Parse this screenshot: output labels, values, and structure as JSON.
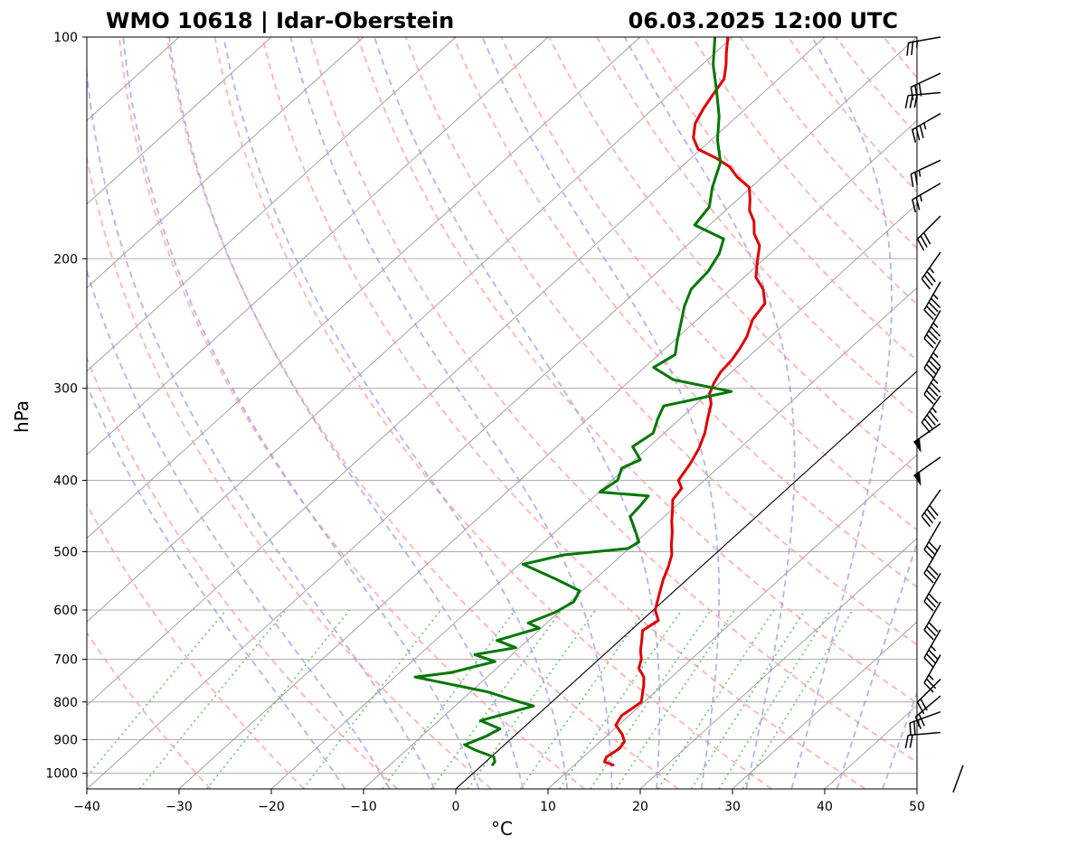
{
  "chart_data": {
    "type": "line",
    "subtype": "skew-t log-p sounding",
    "title_left": "WMO 10618 | Idar-Oberstein",
    "title_right": "06.03.2025 12:00 UTC",
    "xlabel": "°C",
    "ylabel": "hPa",
    "xlim": [
      -40,
      50
    ],
    "ylim": [
      1050,
      100
    ],
    "x_ticks": [
      -40,
      -30,
      -20,
      -10,
      0,
      10,
      20,
      30,
      40,
      50
    ],
    "x_tick_labels": [
      "−40",
      "−30",
      "−20",
      "−10",
      "0",
      "10",
      "20",
      "30",
      "40",
      "50"
    ],
    "y_ticks": [
      1000,
      900,
      800,
      700,
      600,
      500,
      400,
      300,
      200,
      100
    ],
    "y_tick_labels": [
      "1000",
      "900",
      "800",
      "700",
      "600",
      "500",
      "400",
      "300",
      "200",
      "100"
    ],
    "grid": true,
    "colors": {
      "temperature": "#dd0000",
      "dewpoint": "#007700",
      "dry_adiabats": "#ff9999",
      "moist_adiabats": "#9999ee",
      "mixing_ratio": "#66bb66",
      "isotherms": "#999999",
      "zero_isotherm": "#000000",
      "barbs": "#000000"
    },
    "series": [
      {
        "name": "Temperature",
        "points": [
          [
            14.3,
            975
          ],
          [
            12.9,
            965
          ],
          [
            12.5,
            950
          ],
          [
            12.9,
            925
          ],
          [
            12.6,
            905
          ],
          [
            11.5,
            885
          ],
          [
            9.7,
            860
          ],
          [
            9.2,
            835
          ],
          [
            9.5,
            815
          ],
          [
            9.7,
            800
          ],
          [
            8.0,
            760
          ],
          [
            7.0,
            740
          ],
          [
            5.4,
            720
          ],
          [
            4.6,
            700
          ],
          [
            3.4,
            680
          ],
          [
            2.4,
            660
          ],
          [
            1.3,
            640
          ],
          [
            1.8,
            620
          ],
          [
            0.2,
            600
          ],
          [
            -1.3,
            570
          ],
          [
            -2.6,
            545
          ],
          [
            -3.5,
            525
          ],
          [
            -4.6,
            505
          ],
          [
            -5.8,
            490
          ],
          [
            -7.3,
            470
          ],
          [
            -8.6,
            455
          ],
          [
            -9.8,
            440
          ],
          [
            -11.1,
            425
          ],
          [
            -11.5,
            410
          ],
          [
            -12.8,
            400
          ],
          [
            -13.5,
            380
          ],
          [
            -14.4,
            362
          ],
          [
            -15.6,
            345
          ],
          [
            -17.0,
            330
          ],
          [
            -18.4,
            315
          ],
          [
            -19.8,
            305
          ],
          [
            -20.6,
            295
          ],
          [
            -21.2,
            285
          ],
          [
            -21.4,
            275
          ],
          [
            -21.9,
            265
          ],
          [
            -22.6,
            255
          ],
          [
            -24.0,
            242
          ],
          [
            -24.6,
            230
          ],
          [
            -26.5,
            220
          ],
          [
            -28.7,
            212
          ],
          [
            -30.4,
            202
          ],
          [
            -32.1,
            192
          ],
          [
            -34.1,
            185
          ],
          [
            -35.6,
            178
          ],
          [
            -37.4,
            172
          ],
          [
            -38.7,
            166
          ],
          [
            -40.2,
            160
          ],
          [
            -42.7,
            155
          ],
          [
            -44.8,
            150
          ],
          [
            -47.3,
            146
          ],
          [
            -50.3,
            142
          ],
          [
            -52.2,
            137
          ],
          [
            -53.7,
            131
          ],
          [
            -54.6,
            125
          ],
          [
            -55.2,
            120
          ],
          [
            -55.9,
            114
          ],
          [
            -57.4,
            109
          ],
          [
            -58.8,
            105
          ],
          [
            -60.5,
            100
          ]
        ]
      },
      {
        "name": "Dewpoint",
        "points": [
          [
            1.1,
            975
          ],
          [
            1.0,
            965
          ],
          [
            0.3,
            950
          ],
          [
            -2.5,
            930
          ],
          [
            -4.3,
            915
          ],
          [
            -3.0,
            890
          ],
          [
            -2.4,
            870
          ],
          [
            -5.5,
            848
          ],
          [
            -1.5,
            810
          ],
          [
            -3.5,
            800
          ],
          [
            -8.2,
            775
          ],
          [
            -17.8,
            740
          ],
          [
            -14.5,
            730
          ],
          [
            -11.0,
            705
          ],
          [
            -14.0,
            690
          ],
          [
            -10.4,
            675
          ],
          [
            -13.3,
            660
          ],
          [
            -10.2,
            635
          ],
          [
            -12.0,
            625
          ],
          [
            -10.4,
            605
          ],
          [
            -9.6,
            585
          ],
          [
            -10.3,
            565
          ],
          [
            -14.2,
            545
          ],
          [
            -19.6,
            520
          ],
          [
            -16.3,
            505
          ],
          [
            -10.1,
            495
          ],
          [
            -9.7,
            485
          ],
          [
            -11.8,
            465
          ],
          [
            -13.7,
            448
          ],
          [
            -13.9,
            433
          ],
          [
            -14.2,
            420
          ],
          [
            -19.9,
            415
          ],
          [
            -19.4,
            400
          ],
          [
            -20.4,
            385
          ],
          [
            -19.4,
            375
          ],
          [
            -21.8,
            360
          ],
          [
            -21.2,
            345
          ],
          [
            -22.4,
            330
          ],
          [
            -23.3,
            317
          ],
          [
            -17.7,
            303
          ],
          [
            -25.4,
            292
          ],
          [
            -29.0,
            281
          ],
          [
            -28.2,
            270
          ],
          [
            -29.7,
            258
          ],
          [
            -31.3,
            245
          ],
          [
            -33.0,
            232
          ],
          [
            -34.3,
            220
          ],
          [
            -34.6,
            208
          ],
          [
            -35.5,
            197
          ],
          [
            -36.8,
            188
          ],
          [
            -41.6,
            180
          ],
          [
            -42.2,
            170
          ],
          [
            -44.2,
            160
          ],
          [
            -46.3,
            148
          ],
          [
            -49.3,
            138
          ],
          [
            -52.0,
            128
          ],
          [
            -55.4,
            118
          ],
          [
            -58.8,
            109
          ],
          [
            -61.9,
            100
          ]
        ]
      }
    ],
    "wind_barbs": [
      {
        "p": 100,
        "speed_kt": 25,
        "dir_deg": 260
      },
      {
        "p": 112,
        "speed_kt": 30,
        "dir_deg": 245
      },
      {
        "p": 119,
        "speed_kt": 30,
        "dir_deg": 265
      },
      {
        "p": 127,
        "speed_kt": 35,
        "dir_deg": 240
      },
      {
        "p": 147,
        "speed_kt": 25,
        "dir_deg": 245
      },
      {
        "p": 158,
        "speed_kt": 25,
        "dir_deg": 240
      },
      {
        "p": 175,
        "speed_kt": 30,
        "dir_deg": 225
      },
      {
        "p": 196,
        "speed_kt": 35,
        "dir_deg": 215
      },
      {
        "p": 215,
        "speed_kt": 45,
        "dir_deg": 210
      },
      {
        "p": 235,
        "speed_kt": 45,
        "dir_deg": 210
      },
      {
        "p": 258,
        "speed_kt": 45,
        "dir_deg": 210
      },
      {
        "p": 280,
        "speed_kt": 45,
        "dir_deg": 210
      },
      {
        "p": 307,
        "speed_kt": 45,
        "dir_deg": 215
      },
      {
        "p": 335,
        "speed_kt": 50,
        "dir_deg": 235
      },
      {
        "p": 372,
        "speed_kt": 50,
        "dir_deg": 235
      },
      {
        "p": 412,
        "speed_kt": 40,
        "dir_deg": 215
      },
      {
        "p": 455,
        "speed_kt": 30,
        "dir_deg": 210
      },
      {
        "p": 490,
        "speed_kt": 30,
        "dir_deg": 210
      },
      {
        "p": 535,
        "speed_kt": 30,
        "dir_deg": 210
      },
      {
        "p": 585,
        "speed_kt": 30,
        "dir_deg": 210
      },
      {
        "p": 638,
        "speed_kt": 35,
        "dir_deg": 210
      },
      {
        "p": 690,
        "speed_kt": 25,
        "dir_deg": 210
      },
      {
        "p": 745,
        "speed_kt": 20,
        "dir_deg": 225
      },
      {
        "p": 785,
        "speed_kt": 20,
        "dir_deg": 230
      },
      {
        "p": 825,
        "speed_kt": 25,
        "dir_deg": 250
      },
      {
        "p": 880,
        "speed_kt": 20,
        "dir_deg": 265
      },
      {
        "p": 975,
        "speed_kt": 0,
        "dir_deg": 200
      }
    ]
  }
}
